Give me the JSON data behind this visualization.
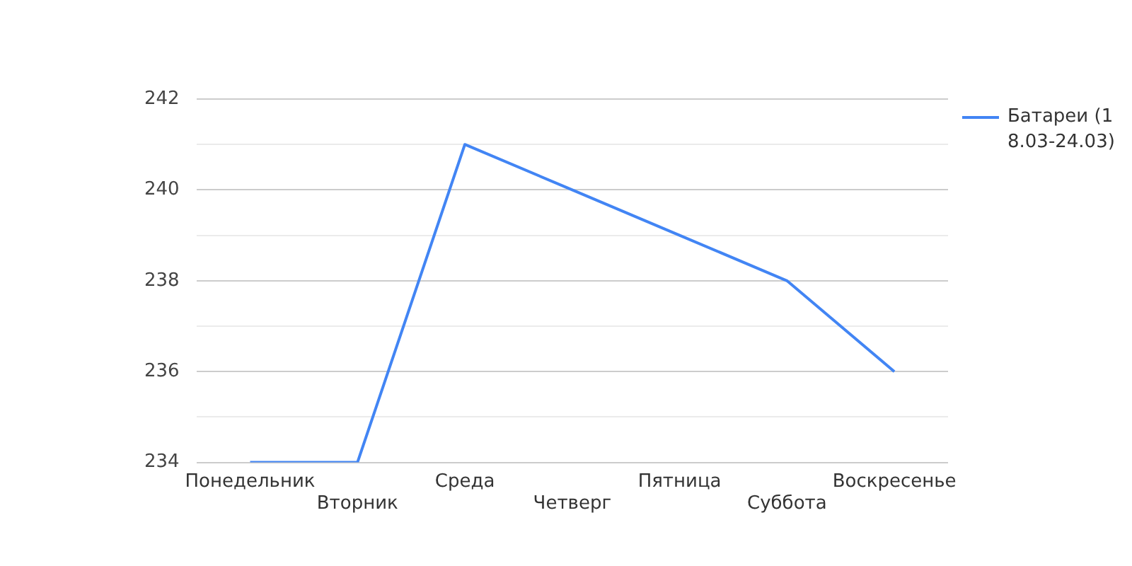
{
  "chart_data": {
    "type": "line",
    "categories": [
      "Понедельник",
      "Вторник",
      "Среда",
      "Четверг",
      "Пятница",
      "Суббота",
      "Воскресенье"
    ],
    "series": [
      {
        "name": "Батареи (18.03-24.03)",
        "color": "#4285f4",
        "values": [
          234,
          234,
          241,
          240,
          239,
          238,
          236
        ]
      }
    ],
    "ylim": [
      234,
      242
    ],
    "yticks": [
      234,
      {
        "value": 235,
        "label": null
      },
      236,
      {
        "value": 237,
        "label": null
      },
      238,
      {
        "value": 239,
        "label": null
      },
      240,
      {
        "value": 241,
        "label": null
      },
      242
    ],
    "grid": "y",
    "legend": "right",
    "marker": "none"
  }
}
